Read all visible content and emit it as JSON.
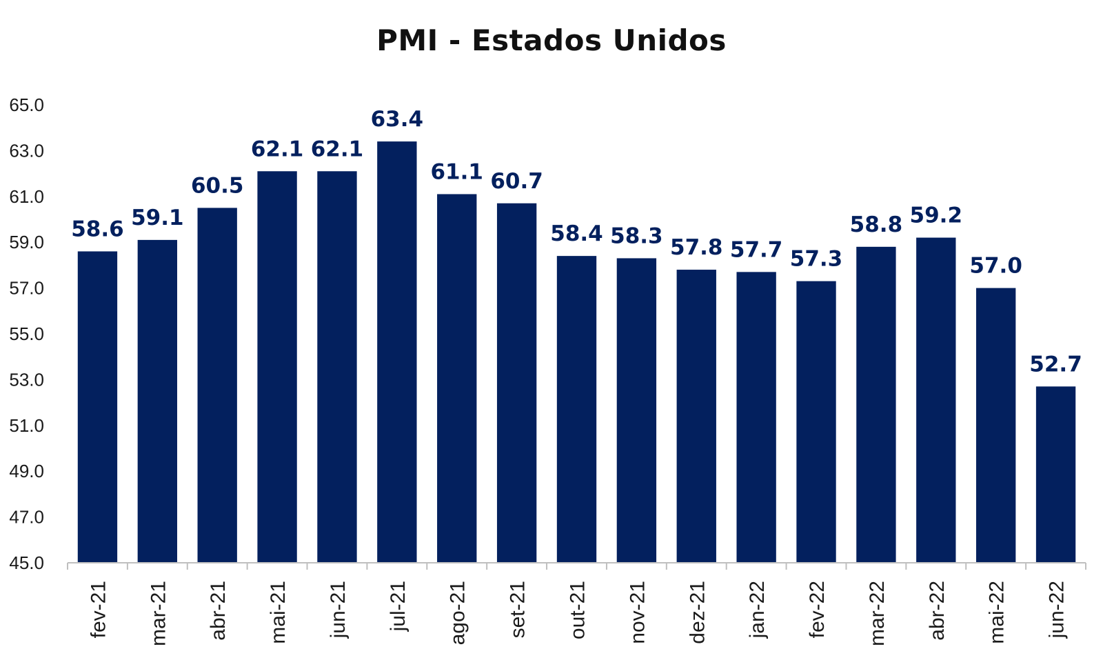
{
  "chart_data": {
    "type": "bar",
    "title": "PMI - Estados Unidos",
    "xlabel": "",
    "ylabel": "",
    "categories": [
      "fev-21",
      "mar-21",
      "abr-21",
      "mai-21",
      "jun-21",
      "jul-21",
      "ago-21",
      "set-21",
      "out-21",
      "nov-21",
      "dez-21",
      "jan-22",
      "fev-22",
      "mar-22",
      "abr-22",
      "mai-22",
      "jun-22"
    ],
    "values": [
      58.6,
      59.1,
      60.5,
      62.1,
      62.1,
      63.4,
      61.1,
      60.7,
      58.4,
      58.3,
      57.8,
      57.7,
      57.3,
      58.8,
      59.2,
      57.0,
      52.7
    ],
    "value_labels": [
      "58.6",
      "59.1",
      "60.5",
      "62.1",
      "62.1",
      "63.4",
      "61.1",
      "60.7",
      "58.4",
      "58.3",
      "57.8",
      "57.7",
      "57.3",
      "58.8",
      "59.2",
      "57.0",
      "52.7"
    ],
    "ylim": [
      45.0,
      65.0
    ],
    "ytick_step": 2.0,
    "ytick_labels": [
      "45.0",
      "47.0",
      "49.0",
      "51.0",
      "53.0",
      "55.0",
      "57.0",
      "59.0",
      "61.0",
      "63.0",
      "65.0"
    ],
    "grid": false,
    "legend": "none",
    "colors": {
      "bar": "#03205e",
      "data_label": "#03205e",
      "axis": "#bfbfbf"
    }
  }
}
